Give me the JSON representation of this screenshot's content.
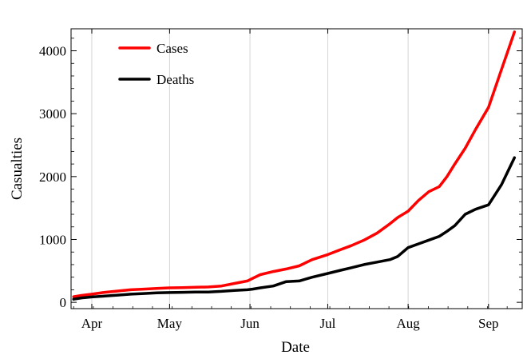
{
  "chart_data": {
    "type": "line",
    "title": "",
    "xlabel": "Date",
    "ylabel": "Casualties",
    "grid": "vertical lines at month starts",
    "legend_position": "top-left",
    "xlim": [
      -8,
      166
    ],
    "ylim": [
      -100,
      4350
    ],
    "x_unit": "days since 1 Apr",
    "x_ticks": [
      {
        "x": 0,
        "label": "Apr"
      },
      {
        "x": 30,
        "label": "May"
      },
      {
        "x": 61,
        "label": "Jun"
      },
      {
        "x": 91,
        "label": "Jul"
      },
      {
        "x": 122,
        "label": "Aug"
      },
      {
        "x": 153,
        "label": "Sep"
      }
    ],
    "y_ticks": [
      {
        "y": 0,
        "label": "0"
      },
      {
        "y": 1000,
        "label": "1000"
      },
      {
        "y": 2000,
        "label": "2000"
      },
      {
        "y": 3000,
        "label": "3000"
      },
      {
        "y": 4000,
        "label": "4000"
      }
    ],
    "series": [
      {
        "name": "Cases",
        "color": "#ff0000",
        "x": [
          -7,
          -4,
          0,
          5,
          10,
          15,
          20,
          25,
          30,
          35,
          40,
          45,
          50,
          55,
          60,
          62,
          65,
          70,
          75,
          80,
          85,
          91,
          96,
          100,
          105,
          110,
          115,
          118,
          122,
          126,
          130,
          134,
          137,
          140,
          144,
          148,
          153,
          158,
          163
        ],
        "y": [
          90,
          110,
          130,
          160,
          180,
          200,
          210,
          220,
          230,
          235,
          240,
          245,
          260,
          300,
          340,
          380,
          440,
          490,
          530,
          580,
          680,
          760,
          840,
          900,
          990,
          1100,
          1250,
          1350,
          1450,
          1620,
          1760,
          1840,
          2000,
          2200,
          2450,
          2750,
          3100,
          3700,
          4300
        ]
      },
      {
        "name": "Deaths",
        "color": "#000000",
        "x": [
          -7,
          -4,
          0,
          5,
          10,
          15,
          20,
          25,
          30,
          35,
          40,
          45,
          50,
          55,
          60,
          62,
          65,
          70,
          75,
          80,
          85,
          91,
          96,
          100,
          105,
          110,
          115,
          118,
          122,
          126,
          130,
          134,
          137,
          140,
          144,
          148,
          153,
          158,
          163
        ],
        "y": [
          50,
          70,
          85,
          100,
          115,
          130,
          140,
          150,
          155,
          160,
          163,
          165,
          175,
          190,
          200,
          210,
          230,
          260,
          330,
          340,
          400,
          460,
          510,
          550,
          600,
          640,
          680,
          730,
          870,
          930,
          990,
          1050,
          1130,
          1220,
          1400,
          1480,
          1550,
          1870,
          2300
        ]
      }
    ]
  }
}
